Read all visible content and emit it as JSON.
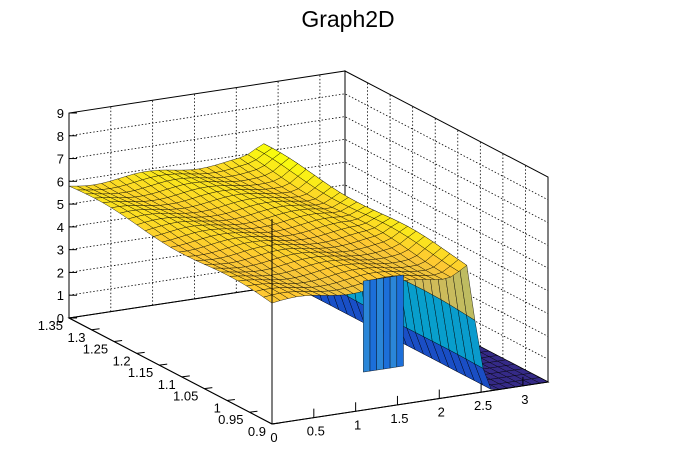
{
  "chart_data": {
    "type": "surface",
    "title": "Graph2D",
    "x_axis": {
      "ticks": [
        0,
        0.5,
        1,
        1.5,
        2,
        2.5,
        3
      ],
      "tick_labels": [
        "0",
        "0.5",
        "1",
        "1.5",
        "2",
        "2.5",
        "3"
      ],
      "range": [
        0,
        3.3
      ]
    },
    "y_axis": {
      "ticks": [
        0.9,
        0.95,
        1,
        1.05,
        1.1,
        1.15,
        1.2,
        1.25,
        1.3,
        1.35
      ],
      "tick_labels": [
        "0.9",
        "0.95",
        "1",
        "1.05",
        "1.1",
        "1.15",
        "1.2",
        "1.25",
        "1.3",
        "1.35"
      ],
      "range": [
        0.9,
        1.35
      ]
    },
    "z_axis": {
      "ticks": [
        0,
        1,
        2,
        3,
        4,
        5,
        6,
        7,
        8,
        9
      ],
      "tick_labels": [
        "0",
        "1",
        "2",
        "3",
        "4",
        "5",
        "6",
        "7",
        "8",
        "9"
      ],
      "range": [
        0,
        9
      ]
    },
    "grid": true,
    "colormap": [
      "#352a87",
      "#0f5cdd",
      "#1481d6",
      "#06a4ca",
      "#2eb7a4",
      "#87bf77",
      "#d1bb59",
      "#fec832",
      "#f9fb0e"
    ],
    "surface_regions": [
      {
        "description": "plateau at x <= 2.3",
        "z": 5.5
      },
      {
        "description": "sharp drop near x = 2.5",
        "z_from": 5.5,
        "z_to": 0
      },
      {
        "description": "floor at x >= 2.7",
        "z": 0
      }
    ]
  }
}
